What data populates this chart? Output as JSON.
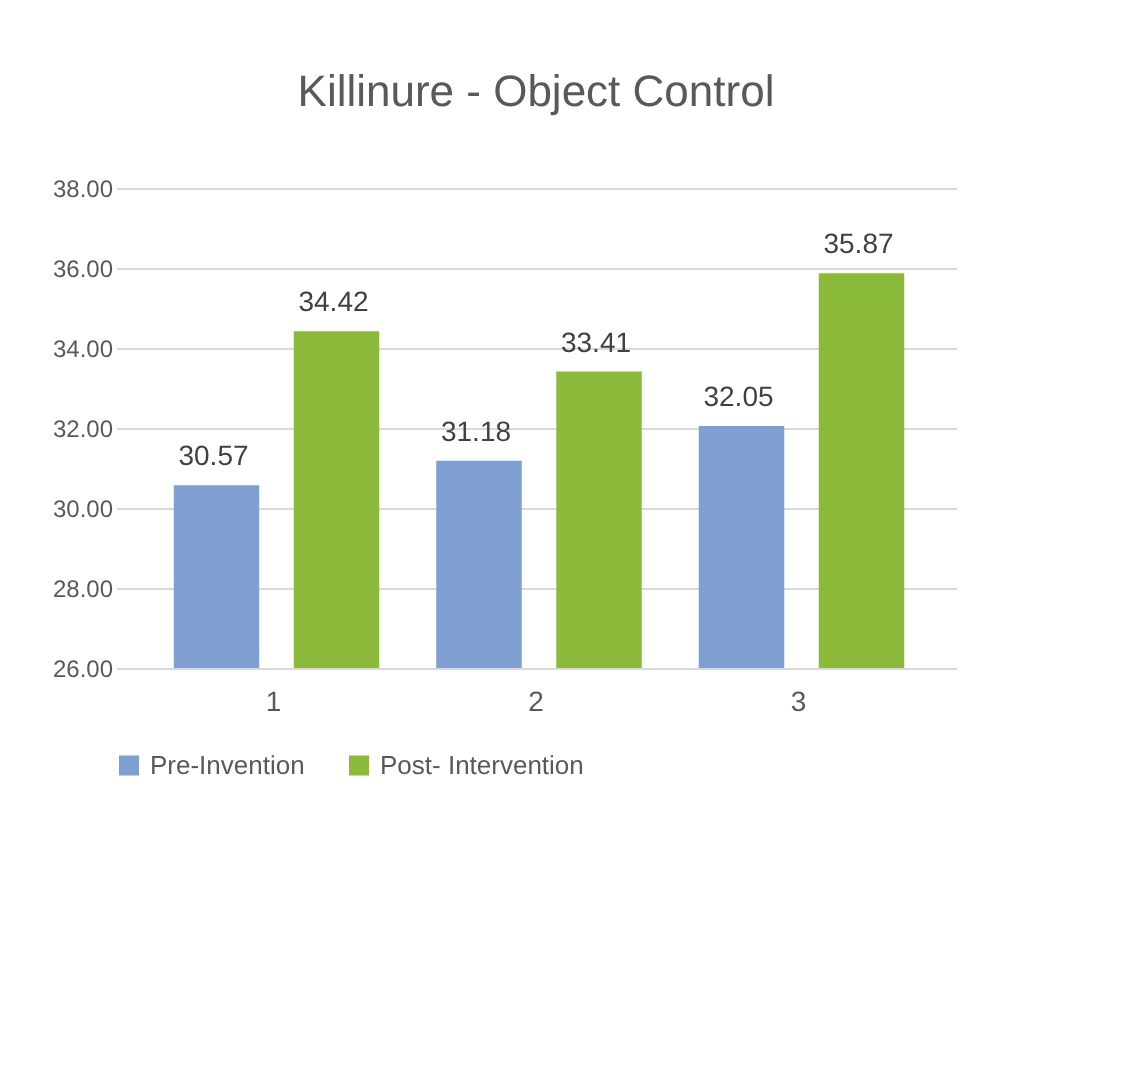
{
  "chart_data": {
    "type": "bar",
    "title": "Killinure - Object Control",
    "categories": [
      "1",
      "2",
      "3"
    ],
    "series": [
      {
        "name": "Pre-Invention",
        "color": "#7f9fd3",
        "values": [
          30.57,
          31.18,
          32.05
        ]
      },
      {
        "name": "Post- Intervention",
        "color": "#8bba3a",
        "values": [
          34.42,
          33.41,
          35.87
        ]
      }
    ],
    "ylim": [
      26,
      38
    ],
    "yticks": [
      {
        "value": 26,
        "label": "26.00"
      },
      {
        "value": 28,
        "label": "28.00"
      },
      {
        "value": 30,
        "label": "30.00"
      },
      {
        "value": 32,
        "label": "32.00"
      },
      {
        "value": 34,
        "label": "34.00"
      },
      {
        "value": 36,
        "label": "36.00"
      },
      {
        "value": 38,
        "label": "38.00"
      }
    ],
    "grid": "y",
    "legend": "bottom",
    "data_labels": true
  }
}
